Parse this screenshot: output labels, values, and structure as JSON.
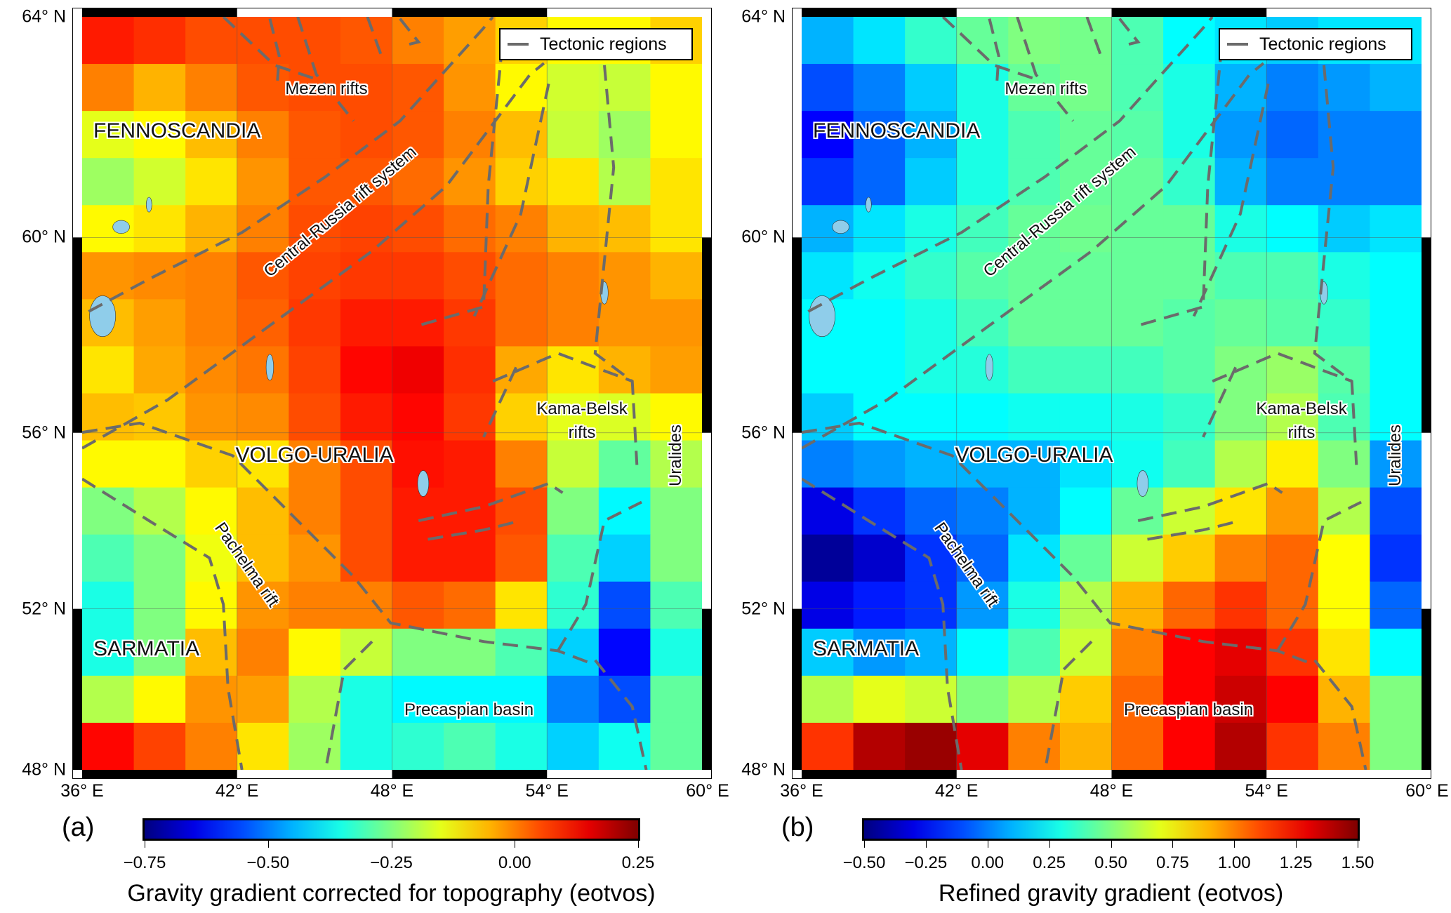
{
  "legend_label": "Tectonic regions",
  "regions": {
    "fennoscandia": "FENNOSCANDIA",
    "mezen": "Mezen rifts",
    "central_russia": "Central-Russia rift system",
    "volgo_uralia": "VOLGO-URALIA",
    "kama_belsk_1": "Kama-Belsk",
    "kama_belsk_2": "rifts",
    "uralides": "Uralides",
    "pachelma": "Pachelma rift",
    "sarmatia": "SARMATIA",
    "precaspian": "Precaspian basin"
  },
  "colors": {
    "tectonic_line": "#6b6b6b",
    "water": "#8fcdea"
  },
  "chart_data": [
    {
      "type": "heatmap",
      "panel_label": "(a)",
      "title": "",
      "colorbar_label": "Gravity gradient corrected for topography (eotvos)",
      "colorbar_range": [
        -0.75,
        0.25
      ],
      "colorbar_ticks": [
        "−0.75",
        "−0.50",
        "−0.25",
        "0.00",
        "0.25"
      ],
      "colormap": "jet",
      "xlim": [
        36,
        60
      ],
      "ylim": [
        48,
        64
      ],
      "x_tick_labels": [
        "36° E",
        "42° E",
        "48° E",
        "54° E",
        "60° E"
      ],
      "y_tick_labels": [
        "64° N",
        "60° N",
        "56° N",
        "52° N",
        "48° N"
      ],
      "grid": true,
      "legend_position": "top-right",
      "cell_lon_step": 2,
      "values_rows_north_to_south": [
        [
          0.1,
          0.08,
          0.05,
          0.05,
          0.05,
          0.04,
          0.0,
          -0.03,
          -0.08,
          -0.12,
          -0.12,
          -0.08
        ],
        [
          0,
          -0.05,
          0,
          0.04,
          0.05,
          0.05,
          0.04,
          -0.02,
          -0.12,
          -0.17,
          -0.18,
          -0.12
        ],
        [
          -0.15,
          -0.12,
          -0.06,
          0,
          0.04,
          0.05,
          0.04,
          0,
          -0.06,
          -0.18,
          -0.22,
          -0.12
        ],
        [
          -0.22,
          -0.17,
          -0.1,
          -0.02,
          0.04,
          0.04,
          0.02,
          -0.02,
          -0.08,
          -0.1,
          -0.2,
          -0.1
        ],
        [
          -0.12,
          -0.1,
          -0.05,
          0,
          0.05,
          0.06,
          0.05,
          0.02,
          0,
          -0.05,
          -0.06,
          -0.1
        ],
        [
          -0.02,
          -0.01,
          0,
          0.04,
          0.06,
          0.07,
          0.07,
          0.05,
          0.02,
          0,
          -0.02,
          -0.05
        ],
        [
          -0.06,
          -0.03,
          0,
          0.03,
          0.07,
          0.1,
          0.1,
          0.07,
          0.02,
          0,
          -0.02,
          -0.02
        ],
        [
          -0.1,
          -0.04,
          -0.01,
          0.01,
          0.06,
          0.12,
          0.14,
          0.08,
          -0.04,
          -0.1,
          -0.05,
          -0.03
        ],
        [
          -0.06,
          -0.07,
          -0.02,
          -0.01,
          0.05,
          0.1,
          0.12,
          0.07,
          -0.08,
          -0.15,
          -0.16,
          -0.12
        ],
        [
          -0.12,
          -0.12,
          -0.08,
          -0.1,
          0,
          0.05,
          0.11,
          0.1,
          0,
          -0.18,
          -0.28,
          -0.2
        ],
        [
          -0.25,
          -0.2,
          -0.12,
          -0.06,
          0,
          0.05,
          0.1,
          0.1,
          0.05,
          -0.25,
          -0.38,
          -0.25
        ],
        [
          -0.3,
          -0.25,
          -0.14,
          -0.06,
          -0.02,
          0.05,
          0.1,
          0.1,
          0.04,
          -0.3,
          -0.42,
          -0.25
        ],
        [
          -0.35,
          -0.25,
          -0.12,
          -0.02,
          0,
          0,
          0.04,
          0.02,
          -0.1,
          -0.33,
          -0.55,
          -0.3
        ],
        [
          -0.35,
          -0.25,
          -0.06,
          0,
          -0.12,
          -0.18,
          -0.25,
          -0.25,
          -0.3,
          -0.42,
          -0.62,
          -0.35
        ],
        [
          -0.2,
          -0.12,
          -0.02,
          -0.03,
          -0.2,
          -0.35,
          -0.38,
          -0.38,
          -0.38,
          -0.5,
          -0.55,
          -0.28
        ],
        [
          0.12,
          0.06,
          0,
          -0.1,
          -0.22,
          -0.35,
          -0.33,
          -0.3,
          -0.35,
          -0.42,
          -0.36,
          -0.28
        ]
      ]
    },
    {
      "type": "heatmap",
      "panel_label": "(b)",
      "title": "",
      "colorbar_label": "Refined gravity gradient (eotvos)",
      "colorbar_range": [
        -0.5,
        1.5
      ],
      "colorbar_ticks": [
        "−0.50",
        "−0.25",
        "0.00",
        "0.25",
        "0.50",
        "0.75",
        "1.00",
        "1.25",
        "1.50"
      ],
      "colormap": "jet",
      "xlim": [
        36,
        60
      ],
      "ylim": [
        48,
        64
      ],
      "x_tick_labels": [
        "36° E",
        "42° E",
        "48° E",
        "54° E",
        "60° E"
      ],
      "y_tick_labels": [
        "64° N",
        "60° N",
        "56° N",
        "52° N",
        "48° N"
      ],
      "grid": true,
      "legend_position": "top-right",
      "cell_lon_step": 2,
      "values_rows_north_to_south": [
        [
          0.1,
          0.2,
          0.35,
          0.45,
          0.5,
          0.48,
          0.4,
          0.25,
          0.2,
          0.15,
          0.2,
          0.2
        ],
        [
          -0.1,
          0,
          0.15,
          0.3,
          0.45,
          0.48,
          0.4,
          0.3,
          0.1,
          0,
          0.05,
          0.1
        ],
        [
          -0.25,
          -0.05,
          0.1,
          0.3,
          0.4,
          0.45,
          0.42,
          0.3,
          0.05,
          -0.05,
          0,
          0
        ],
        [
          -0.15,
          -0.05,
          0.15,
          0.3,
          0.4,
          0.45,
          0.45,
          0.35,
          0.1,
          0,
          0,
          0
        ],
        [
          0.1,
          0.2,
          0.3,
          0.38,
          0.45,
          0.47,
          0.45,
          0.45,
          0.3,
          0.25,
          0.15,
          0.2
        ],
        [
          0.2,
          0.28,
          0.35,
          0.42,
          0.45,
          0.45,
          0.45,
          0.45,
          0.4,
          0.4,
          0.3,
          0.25
        ],
        [
          0.25,
          0.25,
          0.3,
          0.38,
          0.45,
          0.45,
          0.45,
          0.42,
          0.45,
          0.42,
          0.35,
          0.25
        ],
        [
          0.25,
          0.25,
          0.3,
          0.32,
          0.38,
          0.38,
          0.38,
          0.42,
          0.5,
          0.55,
          0.42,
          0.25
        ],
        [
          0.15,
          0.25,
          0.25,
          0.25,
          0.28,
          0.28,
          0.3,
          0.35,
          0.5,
          0.6,
          0.4,
          0.25
        ],
        [
          0,
          0.05,
          0.1,
          0.1,
          0.1,
          0.2,
          0.28,
          0.38,
          0.6,
          0.78,
          0.5,
          0.05
        ],
        [
          -0.3,
          -0.15,
          -0.05,
          0,
          0.1,
          0.25,
          0.45,
          0.65,
          0.8,
          0.95,
          0.6,
          -0.1
        ],
        [
          -0.45,
          -0.35,
          -0.15,
          -0.05,
          0.2,
          0.45,
          0.65,
          0.85,
          1.0,
          1.05,
          0.75,
          -0.15
        ],
        [
          -0.3,
          -0.2,
          -0.15,
          0.05,
          0.3,
          0.6,
          0.9,
          1.05,
          1.15,
          1.05,
          0.75,
          -0.05
        ],
        [
          0.15,
          0.05,
          0.1,
          0.25,
          0.4,
          0.65,
          1.0,
          1.25,
          1.3,
          1.15,
          0.8,
          0.25
        ],
        [
          0.6,
          0.7,
          0.65,
          0.5,
          0.6,
          0.85,
          1.05,
          1.25,
          1.35,
          1.25,
          0.9,
          0.5
        ],
        [
          1.15,
          1.4,
          1.45,
          1.3,
          1.0,
          0.9,
          1.05,
          1.25,
          1.4,
          1.15,
          1.0,
          0.5
        ]
      ]
    }
  ]
}
